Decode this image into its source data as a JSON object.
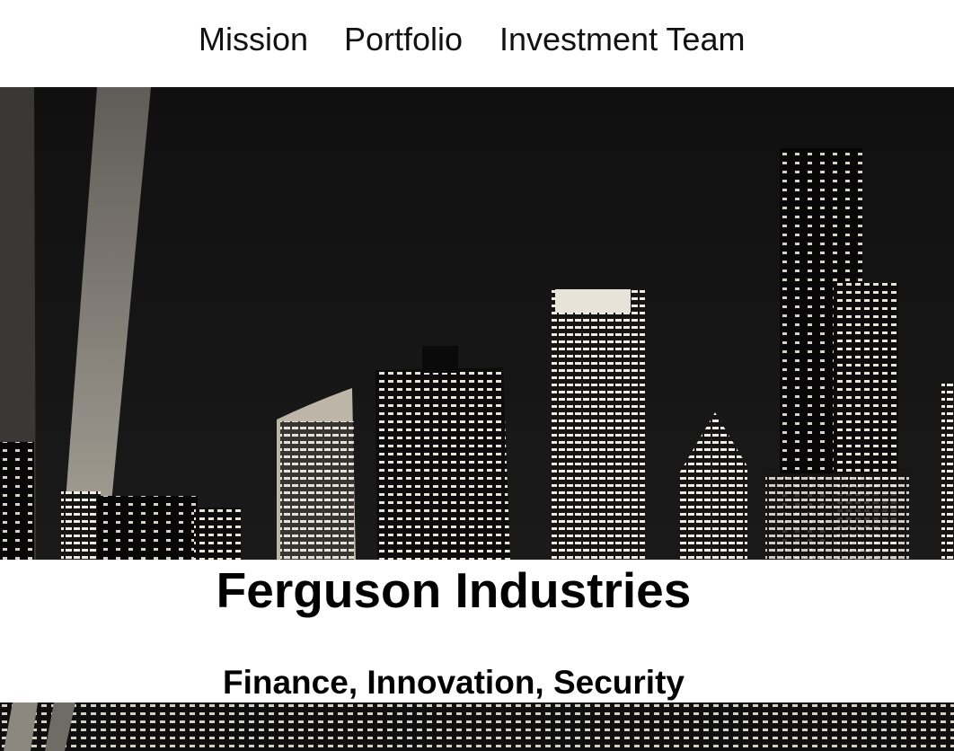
{
  "nav": {
    "items": [
      {
        "label": "Mission"
      },
      {
        "label": "Portfolio"
      },
      {
        "label": "Investment Team"
      }
    ]
  },
  "hero": {
    "image": "city-skyline-night"
  },
  "brand": {
    "title": "Ferguson Industries",
    "tagline": "Finance, Innovation, Security"
  },
  "colors": {
    "text": "#000000",
    "background": "#ffffff",
    "sky": "#0b0b0b"
  }
}
